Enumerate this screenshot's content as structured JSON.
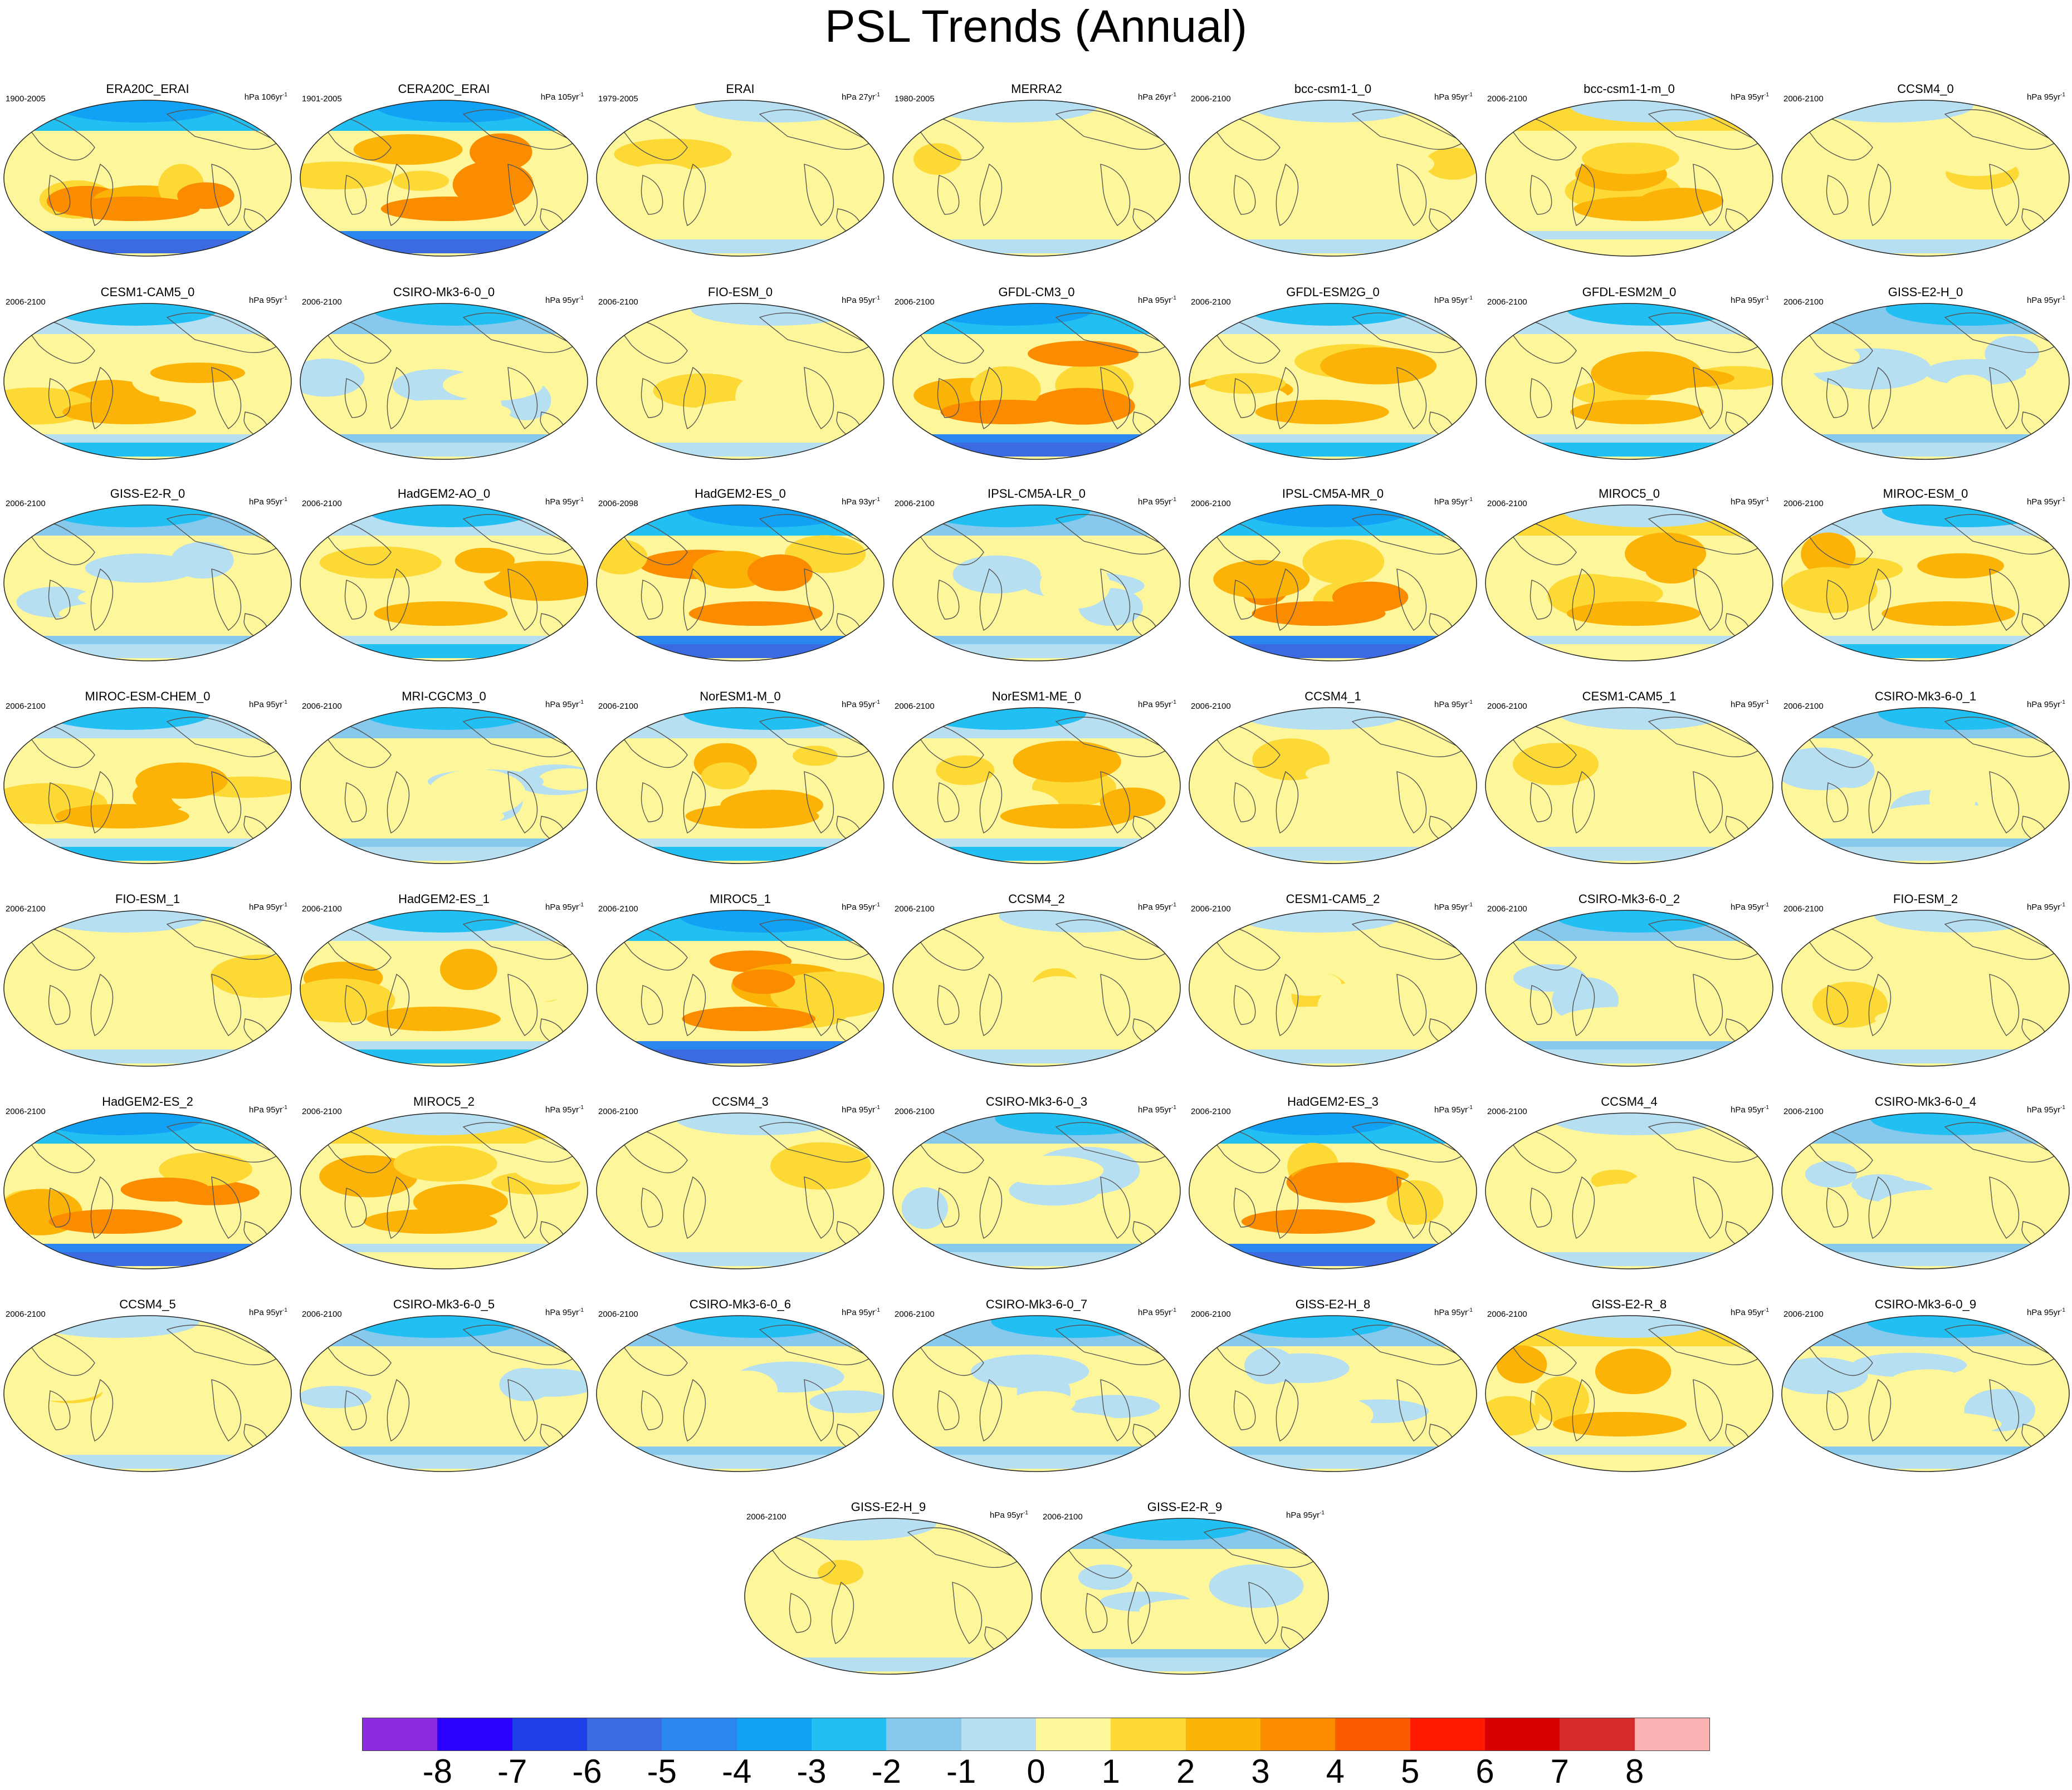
{
  "title": "PSL Trends (Annual)",
  "panels": [
    {
      "name": "ERA20C_ERAI",
      "period": "1900-2005",
      "units": "hPa 106yr",
      "exp": "-1",
      "pattern": "strong"
    },
    {
      "name": "CERA20C_ERAI",
      "period": "1901-2005",
      "units": "hPa 105yr",
      "exp": "-1",
      "pattern": "strong"
    },
    {
      "name": "ERAI",
      "period": "1979-2005",
      "units": "hPa 27yr",
      "exp": "-1",
      "pattern": "weak"
    },
    {
      "name": "MERRA2",
      "period": "1980-2005",
      "units": "hPa 26yr",
      "exp": "-1",
      "pattern": "weak"
    },
    {
      "name": "bcc-csm1-1_0",
      "period": "2006-2100",
      "units": "hPa 95yr",
      "exp": "-1",
      "pattern": "weak"
    },
    {
      "name": "bcc-csm1-1-m_0",
      "period": "2006-2100",
      "units": "hPa 95yr",
      "exp": "-1",
      "pattern": "warm"
    },
    {
      "name": "CCSM4_0",
      "period": "2006-2100",
      "units": "hPa 95yr",
      "exp": "-1",
      "pattern": "weak"
    },
    {
      "name": "CESM1-CAM5_0",
      "period": "2006-2100",
      "units": "hPa 95yr",
      "exp": "-1",
      "pattern": "moderate"
    },
    {
      "name": "CSIRO-Mk3-6-0_0",
      "period": "2006-2100",
      "units": "hPa 95yr",
      "exp": "-1",
      "pattern": "cool"
    },
    {
      "name": "FIO-ESM_0",
      "period": "2006-2100",
      "units": "hPa 95yr",
      "exp": "-1",
      "pattern": "weak"
    },
    {
      "name": "GFDL-CM3_0",
      "period": "2006-2100",
      "units": "hPa 95yr",
      "exp": "-1",
      "pattern": "strong"
    },
    {
      "name": "GFDL-ESM2G_0",
      "period": "2006-2100",
      "units": "hPa 95yr",
      "exp": "-1",
      "pattern": "moderate"
    },
    {
      "name": "GFDL-ESM2M_0",
      "period": "2006-2100",
      "units": "hPa 95yr",
      "exp": "-1",
      "pattern": "moderate"
    },
    {
      "name": "GISS-E2-H_0",
      "period": "2006-2100",
      "units": "hPa 95yr",
      "exp": "-1",
      "pattern": "cool"
    },
    {
      "name": "GISS-E2-R_0",
      "period": "2006-2100",
      "units": "hPa 95yr",
      "exp": "-1",
      "pattern": "cool"
    },
    {
      "name": "HadGEM2-AO_0",
      "period": "2006-2100",
      "units": "hPa 95yr",
      "exp": "-1",
      "pattern": "moderate"
    },
    {
      "name": "HadGEM2-ES_0",
      "period": "2006-2098",
      "units": "hPa 93yr",
      "exp": "-1",
      "pattern": "strong"
    },
    {
      "name": "IPSL-CM5A-LR_0",
      "period": "2006-2100",
      "units": "hPa 95yr",
      "exp": "-1",
      "pattern": "cool"
    },
    {
      "name": "IPSL-CM5A-MR_0",
      "period": "2006-2100",
      "units": "hPa 95yr",
      "exp": "-1",
      "pattern": "strong"
    },
    {
      "name": "MIROC5_0",
      "period": "2006-2100",
      "units": "hPa 95yr",
      "exp": "-1",
      "pattern": "warm"
    },
    {
      "name": "MIROC-ESM_0",
      "period": "2006-2100",
      "units": "hPa 95yr",
      "exp": "-1",
      "pattern": "moderate"
    },
    {
      "name": "MIROC-ESM-CHEM_0",
      "period": "2006-2100",
      "units": "hPa 95yr",
      "exp": "-1",
      "pattern": "moderate"
    },
    {
      "name": "MRI-CGCM3_0",
      "period": "2006-2100",
      "units": "hPa 95yr",
      "exp": "-1",
      "pattern": "cool"
    },
    {
      "name": "NorESM1-M_0",
      "period": "2006-2100",
      "units": "hPa 95yr",
      "exp": "-1",
      "pattern": "moderate"
    },
    {
      "name": "NorESM1-ME_0",
      "period": "2006-2100",
      "units": "hPa 95yr",
      "exp": "-1",
      "pattern": "moderate"
    },
    {
      "name": "CCSM4_1",
      "period": "2006-2100",
      "units": "hPa 95yr",
      "exp": "-1",
      "pattern": "weak"
    },
    {
      "name": "CESM1-CAM5_1",
      "period": "2006-2100",
      "units": "hPa 95yr",
      "exp": "-1",
      "pattern": "weak"
    },
    {
      "name": "CSIRO-Mk3-6-0_1",
      "period": "2006-2100",
      "units": "hPa 95yr",
      "exp": "-1",
      "pattern": "cool"
    },
    {
      "name": "FIO-ESM_1",
      "period": "2006-2100",
      "units": "hPa 95yr",
      "exp": "-1",
      "pattern": "weak"
    },
    {
      "name": "HadGEM2-ES_1",
      "period": "2006-2100",
      "units": "hPa 95yr",
      "exp": "-1",
      "pattern": "moderate"
    },
    {
      "name": "MIROC5_1",
      "period": "2006-2100",
      "units": "hPa 95yr",
      "exp": "-1",
      "pattern": "strong"
    },
    {
      "name": "CCSM4_2",
      "period": "2006-2100",
      "units": "hPa 95yr",
      "exp": "-1",
      "pattern": "weak"
    },
    {
      "name": "CESM1-CAM5_2",
      "period": "2006-2100",
      "units": "hPa 95yr",
      "exp": "-1",
      "pattern": "weak"
    },
    {
      "name": "CSIRO-Mk3-6-0_2",
      "period": "2006-2100",
      "units": "hPa 95yr",
      "exp": "-1",
      "pattern": "cool"
    },
    {
      "name": "FIO-ESM_2",
      "period": "2006-2100",
      "units": "hPa 95yr",
      "exp": "-1",
      "pattern": "weak"
    },
    {
      "name": "HadGEM2-ES_2",
      "period": "2006-2100",
      "units": "hPa 95yr",
      "exp": "-1",
      "pattern": "strong"
    },
    {
      "name": "MIROC5_2",
      "period": "2006-2100",
      "units": "hPa 95yr",
      "exp": "-1",
      "pattern": "warm"
    },
    {
      "name": "CCSM4_3",
      "period": "2006-2100",
      "units": "hPa 95yr",
      "exp": "-1",
      "pattern": "weak"
    },
    {
      "name": "CSIRO-Mk3-6-0_3",
      "period": "2006-2100",
      "units": "hPa 95yr",
      "exp": "-1",
      "pattern": "cool"
    },
    {
      "name": "HadGEM2-ES_3",
      "period": "2006-2100",
      "units": "hPa 95yr",
      "exp": "-1",
      "pattern": "strong"
    },
    {
      "name": "CCSM4_4",
      "period": "2006-2100",
      "units": "hPa 95yr",
      "exp": "-1",
      "pattern": "weak"
    },
    {
      "name": "CSIRO-Mk3-6-0_4",
      "period": "2006-2100",
      "units": "hPa 95yr",
      "exp": "-1",
      "pattern": "cool"
    },
    {
      "name": "CCSM4_5",
      "period": "2006-2100",
      "units": "hPa 95yr",
      "exp": "-1",
      "pattern": "weak"
    },
    {
      "name": "CSIRO-Mk3-6-0_5",
      "period": "2006-2100",
      "units": "hPa 95yr",
      "exp": "-1",
      "pattern": "cool"
    },
    {
      "name": "CSIRO-Mk3-6-0_6",
      "period": "2006-2100",
      "units": "hPa 95yr",
      "exp": "-1",
      "pattern": "cool"
    },
    {
      "name": "CSIRO-Mk3-6-0_7",
      "period": "2006-2100",
      "units": "hPa 95yr",
      "exp": "-1",
      "pattern": "cool"
    },
    {
      "name": "GISS-E2-H_8",
      "period": "2006-2100",
      "units": "hPa 95yr",
      "exp": "-1",
      "pattern": "cool"
    },
    {
      "name": "GISS-E2-R_8",
      "period": "2006-2100",
      "units": "hPa 95yr",
      "exp": "-1",
      "pattern": "warm"
    },
    {
      "name": "CSIRO-Mk3-6-0_9",
      "period": "2006-2100",
      "units": "hPa 95yr",
      "exp": "-1",
      "pattern": "cool"
    },
    {
      "name": "GISS-E2-H_9",
      "period": "2006-2100",
      "units": "hPa 95yr",
      "exp": "-1",
      "pattern": "weak"
    },
    {
      "name": "GISS-E2-R_9",
      "period": "2006-2100",
      "units": "hPa 95yr",
      "exp": "-1",
      "pattern": "cool"
    }
  ],
  "colorbar": {
    "colors": [
      "#8a2be2",
      "#2a00ff",
      "#1f3fe8",
      "#3c6ae0",
      "#2b86f0",
      "#12a2f5",
      "#22bff3",
      "#86c9ec",
      "#b6dff1",
      "#fdf69a",
      "#fdd935",
      "#fbb307",
      "#fb8c00",
      "#fb5b00",
      "#ff1a00",
      "#d80000",
      "#d42a2a",
      "#fbb3b3"
    ],
    "levels": [
      "-8",
      "-7",
      "-6",
      "-5",
      "-4",
      "-3",
      "-2",
      "-1",
      "0",
      "1",
      "2",
      "3",
      "4",
      "5",
      "6",
      "7",
      "8"
    ]
  }
}
